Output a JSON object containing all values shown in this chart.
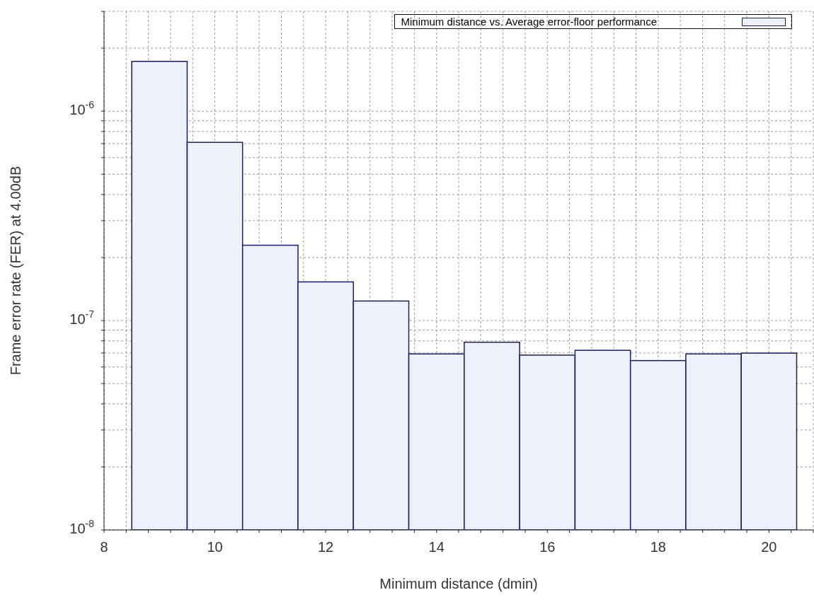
{
  "chart_data": {
    "type": "histogram",
    "xlabel": "Minimum distance (dmin)",
    "ylabel": "Frame error rate (FER) at 4.00dB",
    "bins": [
      8.5,
      9.5,
      10.5,
      11.5,
      12.5,
      13.5,
      14.5,
      15.5,
      16.5,
      17.5,
      18.5,
      19.5,
      20.5
    ],
    "series": [
      {
        "name": "Minimum distance vs. Average error-floor performance",
        "color": "#eef0fc",
        "values": [
          1.73e-06,
          7.1e-07,
          2.29e-07,
          1.53e-07,
          1.24e-07,
          6.93e-08,
          7.88e-08,
          6.84e-08,
          7.21e-08,
          6.44e-08,
          6.93e-08,
          6.99e-08
        ]
      }
    ],
    "log": "y",
    "xlim": [
      8,
      20.8
    ],
    "xticks": [
      8,
      {
        "value": 8.4,
        "label": null
      },
      {
        "value": 8.8,
        "label": null
      },
      {
        "value": 9.2,
        "label": null
      },
      {
        "value": 9.6,
        "label": null
      },
      10,
      {
        "value": 10.4,
        "label": null
      },
      {
        "value": 10.8,
        "label": null
      },
      {
        "value": 11.2,
        "label": null
      },
      {
        "value": 11.6,
        "label": null
      },
      12,
      {
        "value": 12.4,
        "label": null
      },
      {
        "value": 12.8,
        "label": null
      },
      {
        "value": 13.2,
        "label": null
      },
      {
        "value": 13.6,
        "label": null
      },
      14,
      {
        "value": 14.4,
        "label": null
      },
      {
        "value": 14.8,
        "label": null
      },
      {
        "value": 15.2,
        "label": null
      },
      {
        "value": 15.6,
        "label": null
      },
      16,
      {
        "value": 16.4,
        "label": null
      },
      {
        "value": 16.8,
        "label": null
      },
      {
        "value": 17.2,
        "label": null
      },
      {
        "value": 17.6,
        "label": null
      },
      18,
      {
        "value": 18.4,
        "label": null
      },
      {
        "value": 18.8,
        "label": null
      },
      {
        "value": 19.2,
        "label": null
      },
      {
        "value": 19.6,
        "label": null
      },
      20,
      {
        "value": 20.4,
        "label": null
      },
      {
        "value": 20.8,
        "label": null
      }
    ],
    "ylim": [
      1e-08,
      3e-06
    ],
    "yticks": [
      {
        "value": 1e-08,
        "label": "10$^{-8}$"
      },
      {
        "value": 2e-08,
        "label": null
      },
      {
        "value": 3e-08,
        "label": null
      },
      {
        "value": 4e-08,
        "label": null
      },
      {
        "value": 5e-08,
        "label": null
      },
      {
        "value": 6e-08,
        "label": null
      },
      {
        "value": 7e-08,
        "label": null
      },
      {
        "value": 8e-08,
        "label": null
      },
      {
        "value": 9e-08,
        "label": null
      },
      {
        "value": 1e-07,
        "label": "10$^{-7}$"
      },
      {
        "value": 2e-07,
        "label": null
      },
      {
        "value": 3e-07,
        "label": null
      },
      {
        "value": 4e-07,
        "label": null
      },
      {
        "value": 5e-07,
        "label": null
      },
      {
        "value": 6e-07,
        "label": null
      },
      {
        "value": 7e-07,
        "label": null
      },
      {
        "value": 8e-07,
        "label": null
      },
      {
        "value": 9e-07,
        "label": null
      },
      {
        "value": 1e-06,
        "label": "10$^{-6}$"
      },
      {
        "value": 2e-06,
        "label": null
      },
      {
        "value": 3e-06,
        "label": null
      }
    ],
    "grid": true,
    "legend": "top right"
  }
}
